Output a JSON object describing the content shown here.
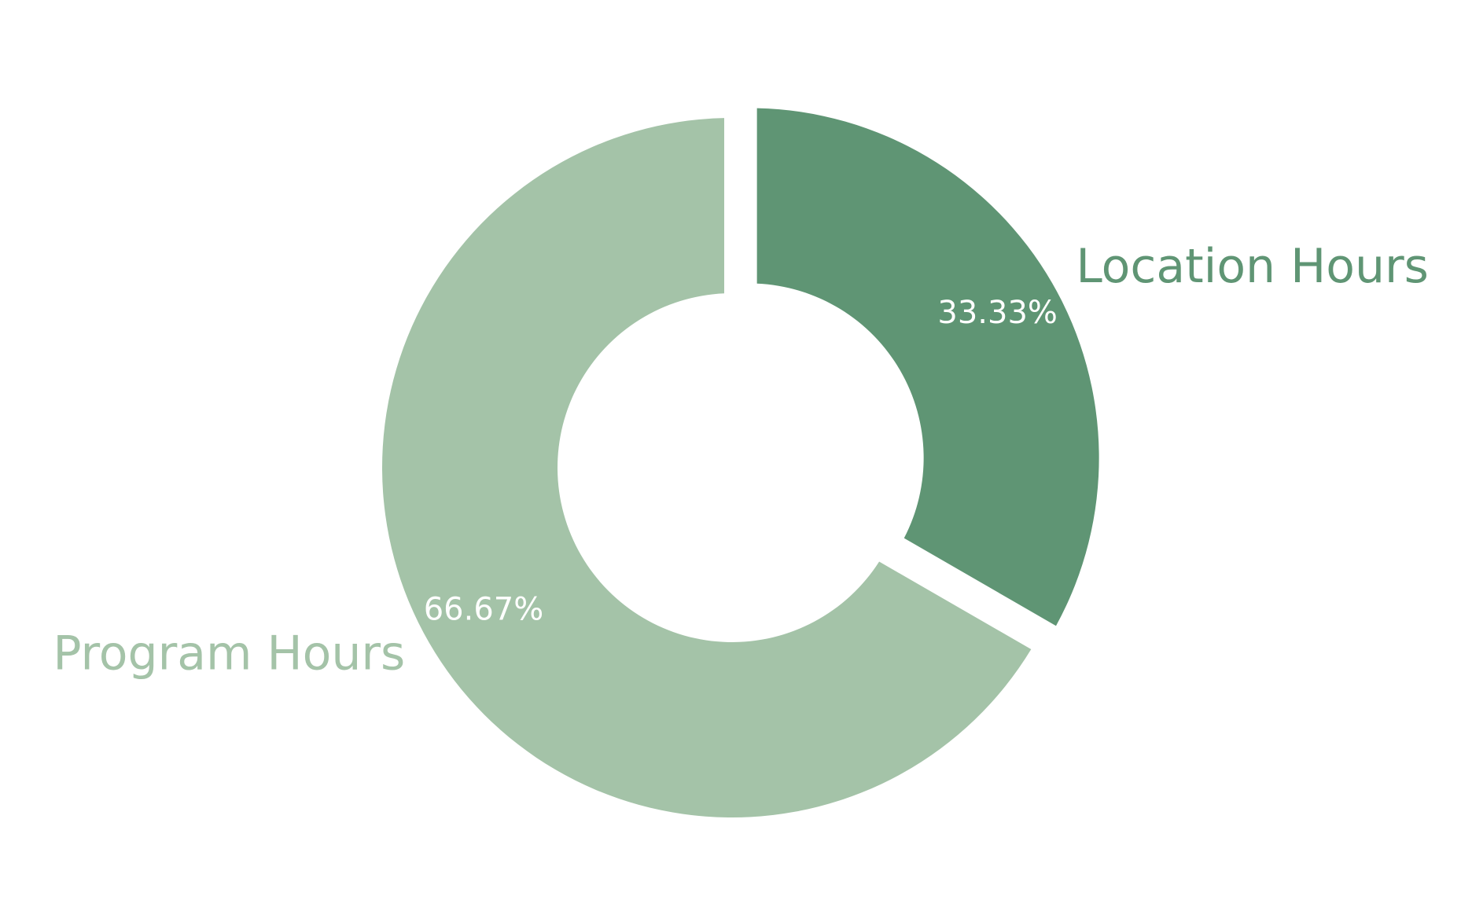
{
  "chart_data": {
    "type": "pie",
    "variant": "donut",
    "title": "",
    "slices": [
      {
        "label": "Location Hours",
        "value": 33.33,
        "value_label": "33.33%",
        "color": "#5f9574",
        "exploded": true
      },
      {
        "label": "Program Hours",
        "value": 66.67,
        "value_label": "66.67%",
        "color": "#a4c3a8",
        "exploded": false
      }
    ],
    "start_angle": "12 o'clock",
    "direction": "clockwise",
    "legend": "none"
  }
}
